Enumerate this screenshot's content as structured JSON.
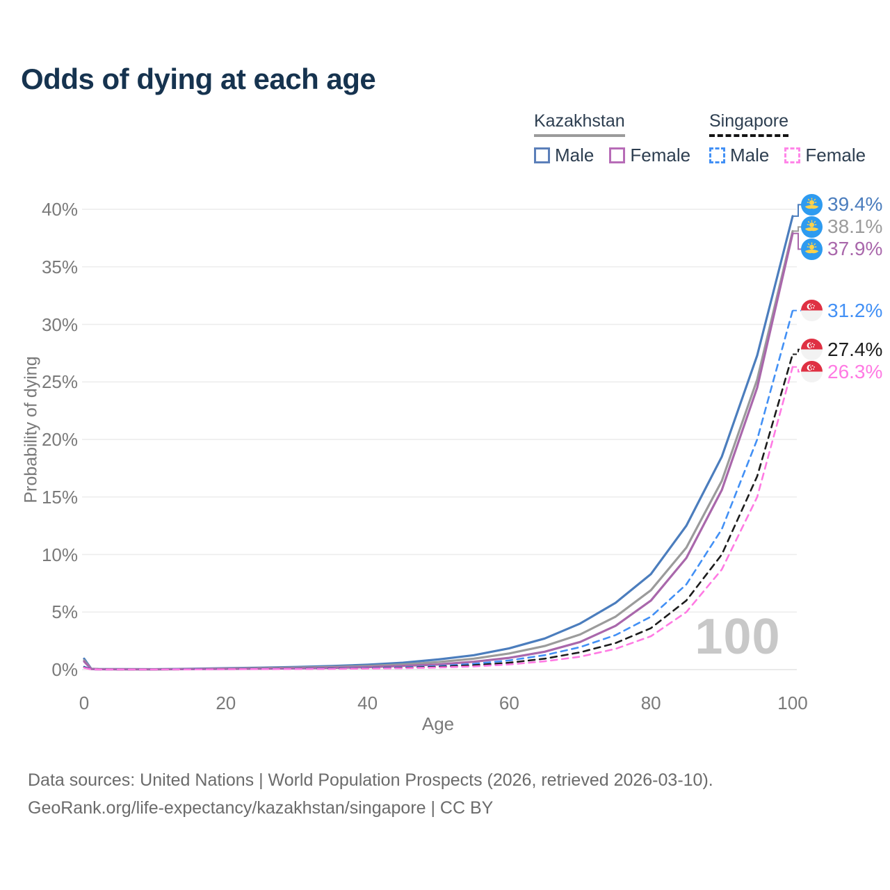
{
  "title": "Odds of dying at each age",
  "legend": {
    "groups": [
      {
        "name": "Kazakhstan",
        "line_style": "solid",
        "underline_color": "#9b9b9b",
        "items": [
          {
            "label": "Male",
            "color": "#5b7fb9"
          },
          {
            "label": "Female",
            "color": "#b76cb7"
          }
        ]
      },
      {
        "name": "Singapore",
        "line_style": "dashed",
        "underline_color": "#141414",
        "items": [
          {
            "label": "Male",
            "color": "#4290f5"
          },
          {
            "label": "Female",
            "color": "#ff85e8"
          }
        ]
      }
    ]
  },
  "chart_data": {
    "type": "line",
    "title": "Odds of dying at each age",
    "xlabel": "Age",
    "ylabel": "Probability of dying",
    "xlim": [
      0,
      100
    ],
    "ylim": [
      0,
      40
    ],
    "x_ticks": [
      0,
      20,
      40,
      60,
      80,
      100
    ],
    "y_ticks": [
      0,
      5,
      10,
      15,
      20,
      25,
      30,
      35,
      40
    ],
    "y_tick_suffix": "%",
    "grid": "horizontal",
    "legend_position": "top-right",
    "watermark": "100",
    "x": [
      0,
      1,
      2,
      5,
      10,
      15,
      20,
      25,
      30,
      35,
      40,
      45,
      50,
      55,
      60,
      65,
      70,
      75,
      80,
      85,
      90,
      95,
      100
    ],
    "series": [
      {
        "name": "Kazakhstan Male",
        "country": "Kazakhstan",
        "flag": "kz",
        "color": "#4b7dbd",
        "dashed": false,
        "end_label": "39.4%",
        "values": [
          0.95,
          0.07,
          0.05,
          0.04,
          0.03,
          0.07,
          0.12,
          0.17,
          0.23,
          0.31,
          0.42,
          0.6,
          0.88,
          1.25,
          1.85,
          2.7,
          4.0,
          5.8,
          8.3,
          12.5,
          18.5,
          27.3,
          39.4
        ]
      },
      {
        "name": "Kazakhstan Total",
        "country": "Kazakhstan",
        "flag": "kz",
        "color": "#9b9b9b",
        "dashed": false,
        "end_label": "38.1%",
        "values": [
          0.8,
          0.06,
          0.04,
          0.03,
          0.025,
          0.05,
          0.09,
          0.13,
          0.17,
          0.23,
          0.31,
          0.45,
          0.65,
          0.95,
          1.4,
          2.05,
          3.05,
          4.6,
          6.9,
          10.6,
          16.4,
          25.2,
          38.1
        ]
      },
      {
        "name": "Kazakhstan Female",
        "country": "Kazakhstan",
        "flag": "kz",
        "color": "#a967ab",
        "dashed": false,
        "end_label": "37.9%",
        "values": [
          0.7,
          0.05,
          0.03,
          0.025,
          0.02,
          0.04,
          0.06,
          0.08,
          0.11,
          0.15,
          0.21,
          0.32,
          0.45,
          0.68,
          1.02,
          1.55,
          2.4,
          3.8,
          6.0,
          9.7,
          15.6,
          24.5,
          37.9
        ]
      },
      {
        "name": "Singapore Male",
        "country": "Singapore",
        "flag": "sg",
        "color": "#4290f5",
        "dashed": true,
        "end_label": "31.2%",
        "values": [
          0.25,
          0.015,
          0.01,
          0.01,
          0.01,
          0.03,
          0.05,
          0.06,
          0.08,
          0.1,
          0.14,
          0.2,
          0.3,
          0.5,
          0.8,
          1.25,
          1.95,
          3.0,
          4.6,
          7.4,
          12.2,
          20.0,
          31.2
        ]
      },
      {
        "name": "Singapore Total",
        "country": "Singapore",
        "flag": "sg",
        "color": "#1c1c1c",
        "dashed": true,
        "end_label": "27.4%",
        "values": [
          0.2,
          0.012,
          0.01,
          0.008,
          0.008,
          0.02,
          0.04,
          0.05,
          0.06,
          0.08,
          0.11,
          0.16,
          0.24,
          0.38,
          0.6,
          0.95,
          1.5,
          2.3,
          3.6,
          6.0,
          10.0,
          16.8,
          27.4
        ]
      },
      {
        "name": "Singapore Female",
        "country": "Singapore",
        "flag": "sg",
        "color": "#ff7ae3",
        "dashed": true,
        "end_label": "26.3%",
        "values": [
          0.16,
          0.01,
          0.008,
          0.007,
          0.007,
          0.015,
          0.03,
          0.04,
          0.05,
          0.06,
          0.09,
          0.12,
          0.18,
          0.28,
          0.45,
          0.72,
          1.12,
          1.8,
          2.9,
          5.0,
          8.7,
          15.0,
          26.3
        ]
      }
    ]
  },
  "footer": {
    "line1": "Data sources: United Nations | World Population Prospects (2026, retrieved 2026-03-10).",
    "line2": "GeoRank.org/life-expectancy/kazakhstan/singapore | CC BY"
  }
}
